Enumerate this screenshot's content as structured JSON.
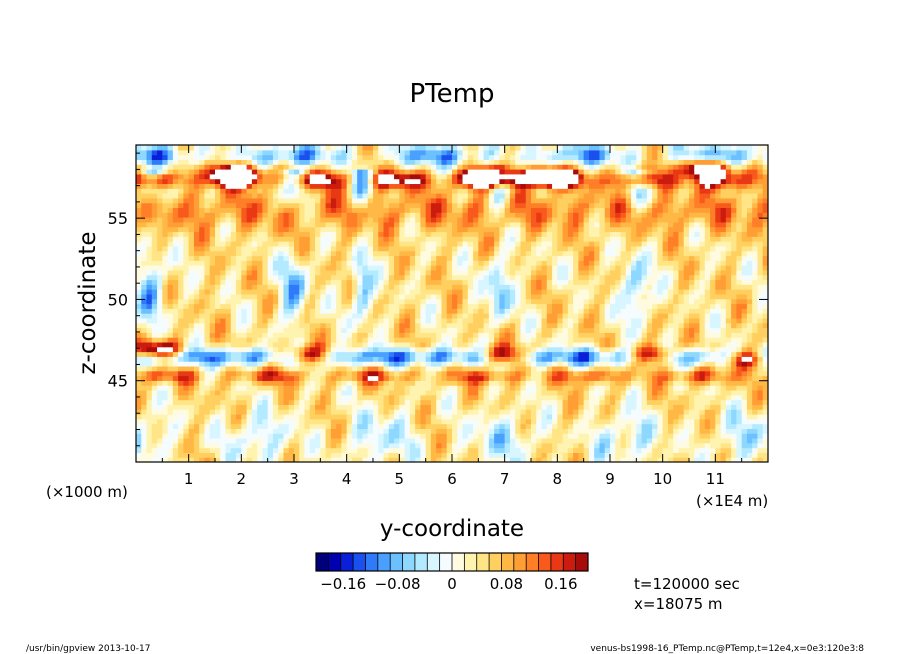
{
  "chart_data": {
    "type": "heatmap",
    "title": "PTemp",
    "xlabel": "y-coordinate",
    "ylabel": "z-coordinate",
    "x_unit_left": "(×1000 m)",
    "x_unit_right": "(×1E4 m)",
    "xlim": [
      0,
      12
    ],
    "ylim": [
      40,
      59.5
    ],
    "x_ticks": [
      "1",
      "2",
      "3",
      "4",
      "5",
      "6",
      "7",
      "8",
      "9",
      "10",
      "11"
    ],
    "y_ticks": [
      "45",
      "50",
      "55"
    ],
    "colorbar": {
      "min": -0.2,
      "max": 0.2,
      "tick_labels": [
        "−0.16",
        "−0.08",
        "0",
        "0.08",
        "0.16"
      ],
      "tick_values": [
        -0.16,
        -0.08,
        0,
        0.08,
        0.16
      ],
      "colors": [
        "#00007a",
        "#0000b0",
        "#0a20d8",
        "#1a50ee",
        "#2f7af8",
        "#4aa0ff",
        "#6cc0ff",
        "#8ed8ff",
        "#b4eaff",
        "#d8f6ff",
        "#f4fcff",
        "#fffbe0",
        "#fff3b0",
        "#ffe585",
        "#ffd060",
        "#ffb845",
        "#ff9e35",
        "#ff7e28",
        "#f85a1c",
        "#e83814",
        "#cc1c10",
        "#a80c0a"
      ]
    },
    "annotations": {
      "time": "t=120000 sec",
      "position": "x=18075 m"
    },
    "footer_left": "/usr/bin/gpview   2013-10-17",
    "footer_right": "venus-bs1998-16_PTemp.nc@PTemp,t=12e4,x=0e3:120e3:8",
    "series": [
      {
        "name": "",
        "features": [
          {
            "kind": "band",
            "z": 46.5,
            "value": -0.18
          },
          {
            "kind": "band",
            "z": 45.3,
            "value": 0.15
          },
          {
            "kind": "band",
            "z": 58.8,
            "value": -0.12
          },
          {
            "kind": "band",
            "z": 57.4,
            "value": 0.17
          },
          {
            "kind": "band",
            "z": 55.5,
            "value": 0.1
          },
          {
            "kind": "band",
            "z": 51.5,
            "value": 0.05
          }
        ]
      }
    ]
  }
}
